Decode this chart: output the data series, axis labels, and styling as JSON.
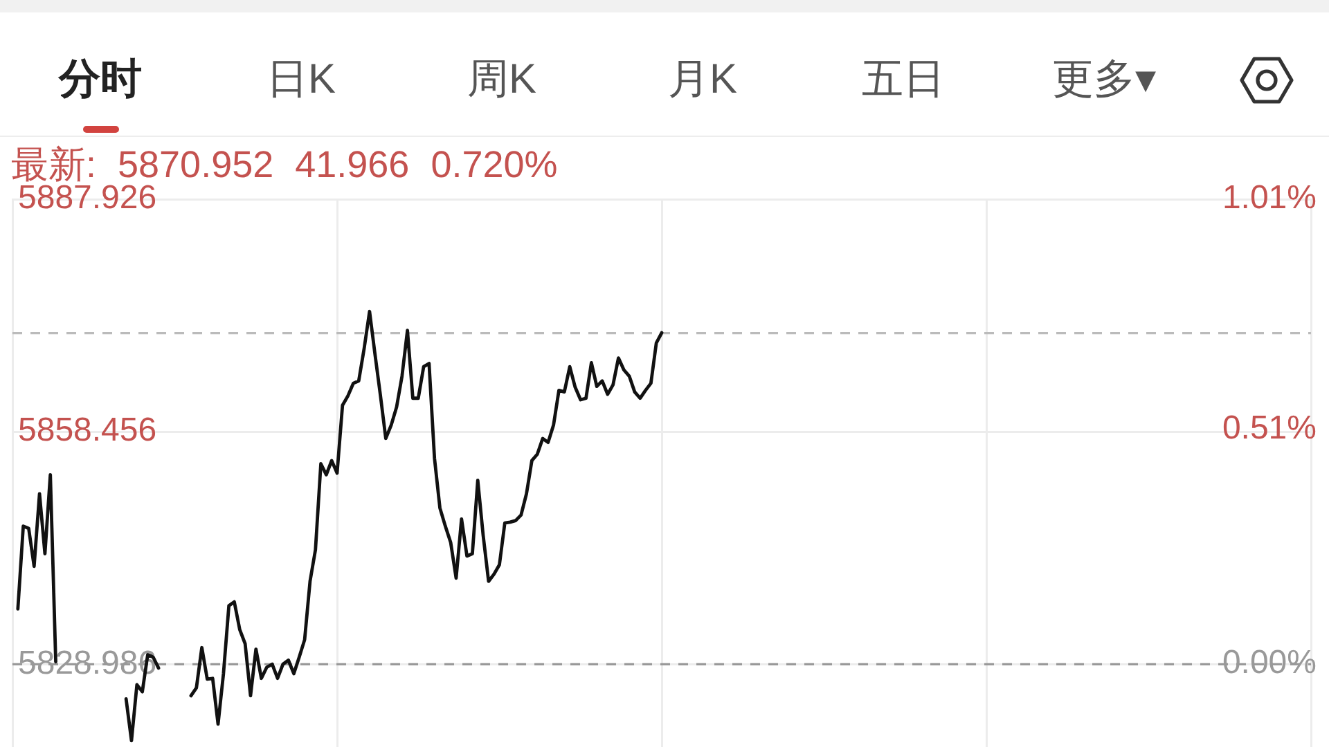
{
  "chart_data": {
    "type": "line",
    "title": "最新: 5870.952 41.966 0.720%",
    "annotations": [
      "分时",
      "日K",
      "周K",
      "月K",
      "五日",
      "更多▾"
    ],
    "categories": [
      null,
      null,
      null,
      null,
      null,
      null,
      null,
      null,
      null,
      null,
      null,
      null,
      null,
      null,
      null,
      null,
      null,
      null,
      null,
      null,
      null,
      null,
      null,
      null,
      null,
      null,
      null,
      null,
      null,
      null,
      null,
      null,
      null,
      null,
      null,
      null,
      null,
      null,
      null,
      null,
      null,
      null,
      null,
      null,
      null,
      null,
      null,
      null,
      null,
      null,
      null,
      null,
      null,
      null,
      null,
      null,
      null,
      null,
      null,
      null,
      null,
      null,
      null,
      null,
      null,
      null,
      null,
      null,
      null,
      null,
      null,
      null,
      null,
      null,
      null,
      null,
      null,
      null,
      null,
      null,
      null,
      null,
      null,
      null,
      null,
      null,
      null,
      null,
      null,
      null,
      null,
      null,
      null,
      null,
      null,
      null,
      null,
      null,
      null,
      null,
      null,
      null,
      null,
      null,
      null,
      null,
      null,
      null,
      null,
      null,
      null,
      null,
      null,
      null,
      null,
      null,
      null,
      null,
      null,
      null,
      null,
      null,
      null,
      null,
      null,
      null,
      null,
      null,
      null,
      null,
      null,
      null,
      null,
      null,
      null,
      null,
      null,
      null,
      null,
      null,
      null,
      null,
      null,
      null,
      null,
      null,
      null,
      null,
      null,
      null,
      null,
      null,
      null,
      null,
      null,
      null,
      null,
      null,
      null,
      null,
      null,
      null,
      null,
      null,
      null,
      null,
      null,
      null,
      null,
      null,
      null,
      null,
      null,
      null,
      null,
      null,
      null,
      null,
      null,
      null,
      null,
      null,
      null,
      null,
      null,
      null,
      null,
      null,
      null,
      null,
      null,
      null,
      null,
      null,
      null,
      null,
      null,
      null,
      null,
      null,
      null,
      null,
      null,
      null,
      null,
      null,
      null,
      null,
      null,
      null,
      null,
      null,
      null,
      null,
      null,
      null,
      null,
      null,
      null,
      null,
      null,
      null,
      null,
      null,
      null,
      null,
      null,
      null,
      null,
      null,
      null,
      null,
      null,
      null,
      null,
      null,
      null,
      null,
      null,
      null,
      null
    ],
    "series": [
      {
        "color": "#111111",
        "values": [
          null,
          5836.0,
          5846.5,
          5846.2,
          5841.4,
          5850.6,
          5843.0,
          5853.0,
          5829.3,
          null,
          null,
          null,
          null,
          null,
          null,
          null,
          null,
          null,
          null,
          null,
          null,
          5824.6,
          5819.3,
          5826.4,
          5825.5,
          5830.2,
          5829.9,
          5828.5,
          null,
          null,
          null,
          null,
          null,
          5825.0,
          5826.0,
          5831.1,
          5827.1,
          5827.2,
          5821.4,
          5827.8,
          5836.4,
          5836.9,
          5833.4,
          5831.6,
          5825.0,
          5830.9,
          5827.2,
          5828.6,
          5829.0,
          5827.2,
          5829.0,
          5829.5,
          5827.8,
          5829.9,
          5832.1,
          5839.5,
          5843.5,
          5854.4,
          5853.0,
          5854.8,
          5853.2,
          5861.8,
          5863.0,
          5864.6,
          5864.9,
          5869.0,
          5873.7,
          5868.3,
          5863.1,
          5857.6,
          5859.3,
          5861.6,
          5865.5,
          5871.3,
          5862.7,
          5862.7,
          5866.7,
          5867.1,
          5855.1,
          5848.8,
          5846.5,
          5844.4,
          5839.9,
          5847.4,
          5842.7,
          5843.0,
          5852.3,
          5845.3,
          5839.5,
          5840.4,
          5841.6,
          5846.9,
          5847.0,
          5847.2,
          5847.9,
          5850.6,
          5854.8,
          5855.6,
          5857.6,
          5857.1,
          5859.3,
          5863.7,
          5863.5,
          5866.7,
          5864.1,
          5862.5,
          5862.7,
          5867.2,
          5864.2,
          5864.9,
          5863.2,
          5864.4,
          5867.8,
          5866.3,
          5865.5,
          5863.5,
          5862.7,
          5863.7,
          5864.6,
          5869.7,
          5871.0,
          null,
          null,
          null,
          null,
          null,
          null,
          null,
          null,
          null,
          null,
          null,
          null,
          null,
          null,
          null,
          null,
          null,
          null,
          null,
          null,
          null,
          null,
          null,
          null,
          null,
          null,
          null,
          null,
          null,
          null,
          null,
          null,
          null,
          null,
          null,
          null,
          null,
          null,
          null,
          null,
          null,
          null,
          null,
          null,
          null,
          null,
          null,
          null,
          null,
          null,
          null,
          null,
          null,
          null,
          null,
          null,
          null,
          null,
          null,
          null,
          null,
          null,
          null,
          null,
          null,
          null,
          null,
          null,
          null,
          null,
          null,
          null,
          null,
          null,
          null,
          null,
          null,
          null,
          null,
          null,
          null,
          null,
          null,
          null,
          null,
          null,
          null,
          null,
          null,
          null,
          null,
          null,
          null,
          null,
          null,
          null,
          null,
          null,
          null,
          null,
          null,
          null,
          null,
          null,
          null,
          null,
          null,
          null,
          null,
          null,
          null,
          null,
          null,
          null,
          null,
          null,
          null,
          null,
          null,
          null
        ]
      }
    ],
    "ylim": [
      5818.5,
      5887.926
    ],
    "yticks": [
      5887.926,
      5858.456,
      5828.986
    ],
    "y2lim": [
      -0.18,
      1.01
    ],
    "y2ticks": [
      {
        "value": 1.01,
        "label": "1.01%"
      },
      {
        "value": 0.51,
        "label": "0.51%"
      },
      {
        "value": 0,
        "label": "0.00%"
      }
    ],
    "grid": true,
    "ref_lines": [
      {
        "axis": "y",
        "value": 5870.952,
        "color": "#bbbbbb",
        "line_style": "dashed"
      },
      {
        "axis": "y",
        "value": 5828.986,
        "color": "#999999",
        "line_style": "dashed"
      }
    ]
  }
}
